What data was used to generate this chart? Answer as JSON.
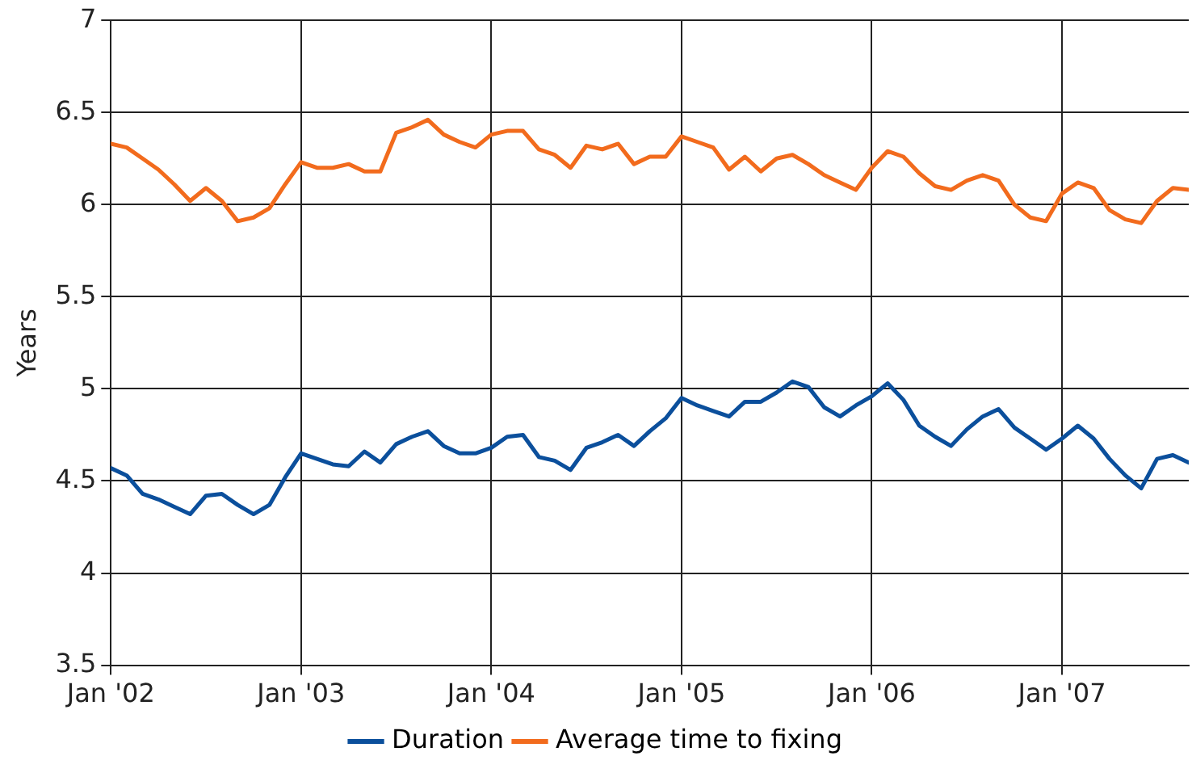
{
  "chart_data": {
    "type": "line",
    "ylabel": "Years",
    "x": [
      "2002-01",
      "2002-02",
      "2002-03",
      "2002-04",
      "2002-05",
      "2002-06",
      "2002-07",
      "2002-08",
      "2002-09",
      "2002-10",
      "2002-11",
      "2002-12",
      "2003-01",
      "2003-02",
      "2003-03",
      "2003-04",
      "2003-05",
      "2003-06",
      "2003-07",
      "2003-08",
      "2003-09",
      "2003-10",
      "2003-11",
      "2003-12",
      "2004-01",
      "2004-02",
      "2004-03",
      "2004-04",
      "2004-05",
      "2004-06",
      "2004-07",
      "2004-08",
      "2004-09",
      "2004-10",
      "2004-11",
      "2004-12",
      "2005-01",
      "2005-02",
      "2005-03",
      "2005-04",
      "2005-05",
      "2005-06",
      "2005-07",
      "2005-08",
      "2005-09",
      "2005-10",
      "2005-11",
      "2005-12",
      "2006-01",
      "2006-02",
      "2006-03",
      "2006-04",
      "2006-05",
      "2006-06",
      "2006-07",
      "2006-08",
      "2006-09",
      "2006-10",
      "2006-11",
      "2006-12",
      "2007-01",
      "2007-02",
      "2007-03",
      "2007-04",
      "2007-05",
      "2007-06",
      "2007-07",
      "2007-08",
      "2007-09"
    ],
    "series": [
      {
        "name": "Duration",
        "color": "#0b4f9c",
        "values": [
          4.57,
          4.53,
          4.43,
          4.4,
          4.36,
          4.32,
          4.42,
          4.43,
          4.37,
          4.32,
          4.37,
          4.52,
          4.65,
          4.62,
          4.59,
          4.58,
          4.66,
          4.6,
          4.7,
          4.74,
          4.77,
          4.69,
          4.65,
          4.65,
          4.68,
          4.74,
          4.75,
          4.63,
          4.61,
          4.56,
          4.68,
          4.71,
          4.75,
          4.69,
          4.77,
          4.84,
          4.95,
          4.91,
          4.88,
          4.85,
          4.93,
          4.93,
          4.98,
          5.04,
          5.01,
          4.9,
          4.85,
          4.91,
          4.96,
          5.03,
          4.94,
          4.8,
          4.74,
          4.69,
          4.78,
          4.85,
          4.89,
          4.79,
          4.73,
          4.67,
          4.73,
          4.8,
          4.73,
          4.62,
          4.53,
          4.46,
          4.62,
          4.64,
          4.6
        ]
      },
      {
        "name": "Average time to fixing",
        "color": "#f26b1d",
        "values": [
          6.33,
          6.31,
          6.25,
          6.19,
          6.11,
          6.02,
          6.09,
          6.02,
          5.91,
          5.93,
          5.98,
          6.11,
          6.23,
          6.2,
          6.2,
          6.22,
          6.18,
          6.18,
          6.39,
          6.42,
          6.46,
          6.38,
          6.34,
          6.31,
          6.38,
          6.4,
          6.4,
          6.3,
          6.27,
          6.2,
          6.32,
          6.3,
          6.33,
          6.22,
          6.26,
          6.26,
          6.37,
          6.34,
          6.31,
          6.19,
          6.26,
          6.18,
          6.25,
          6.27,
          6.22,
          6.16,
          6.12,
          6.08,
          6.2,
          6.29,
          6.26,
          6.17,
          6.1,
          6.08,
          6.13,
          6.16,
          6.13,
          6,
          5.93,
          5.91,
          6.06,
          6.12,
          6.09,
          5.97,
          5.92,
          5.9,
          6.02,
          6.09,
          6.08
        ]
      }
    ],
    "xlim": [
      "2002-01",
      "2007-09"
    ],
    "xticks": [
      {
        "value": "2002-01",
        "label": "Jan '02"
      },
      {
        "value": "2003-01",
        "label": "Jan '03"
      },
      {
        "value": "2004-01",
        "label": "Jan '04"
      },
      {
        "value": "2005-01",
        "label": "Jan '05"
      },
      {
        "value": "2006-01",
        "label": "Jan '06"
      },
      {
        "value": "2007-01",
        "label": "Jan '07"
      }
    ],
    "ylim": [
      3.5,
      7
    ],
    "yticks": [
      3.5,
      4,
      4.5,
      5,
      5.5,
      6,
      6.5,
      7
    ],
    "grid": true,
    "legend": "bottom",
    "marker": "none",
    "line_style": "solid"
  }
}
